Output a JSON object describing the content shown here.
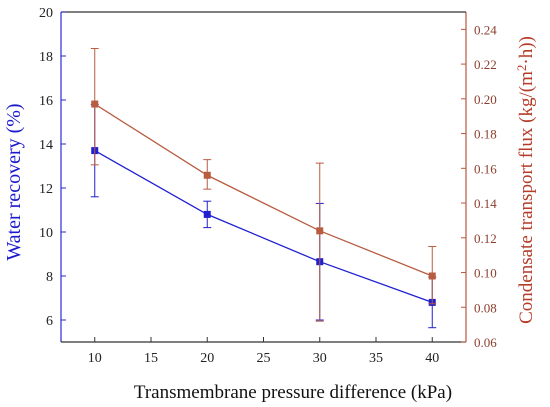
{
  "chart_data": {
    "type": "line",
    "title": "",
    "xlabel": "Transmembrane pressure difference (kPa)",
    "ylabel_left": "Water recovery (%)",
    "ylabel_right_main": "Condensate transport flux (kg/(m",
    "ylabel_right_sup": "2",
    "ylabel_right_end": "·h))",
    "xlim": [
      7,
      43
    ],
    "ylim_left": [
      5,
      20
    ],
    "ylim_right": [
      0.06,
      0.25
    ],
    "x_ticks": [
      10,
      15,
      20,
      25,
      30,
      35,
      40
    ],
    "y_left_ticks": [
      6,
      8,
      10,
      12,
      14,
      16,
      18,
      20
    ],
    "y_right_ticks": [
      0.06,
      0.08,
      0.1,
      0.12,
      0.14,
      0.16,
      0.18,
      0.2,
      0.22,
      0.24
    ],
    "y_right_tick_labels": [
      "0.06",
      "0.08",
      "0.10",
      "0.12",
      "0.14",
      "0.16",
      "0.18",
      "0.20",
      "0.22",
      "0.24"
    ],
    "grid": false,
    "series": [
      {
        "axis": "left",
        "color": "#2020d0",
        "x": [
          10,
          20,
          30,
          40
        ],
        "y": [
          13.7,
          10.8,
          8.65,
          6.8
        ],
        "err_low": [
          2.1,
          0.6,
          2.65,
          1.15
        ],
        "err_high": [
          2.1,
          0.6,
          2.65,
          1.15
        ]
      },
      {
        "axis": "right",
        "color": "#b85c40",
        "x": [
          10,
          20,
          30,
          40
        ],
        "y": [
          0.197,
          0.156,
          0.124,
          0.098
        ],
        "err_low": [
          0.035,
          0.008,
          0.052,
          0.016
        ],
        "err_high": [
          0.032,
          0.009,
          0.039,
          0.017
        ]
      }
    ]
  }
}
